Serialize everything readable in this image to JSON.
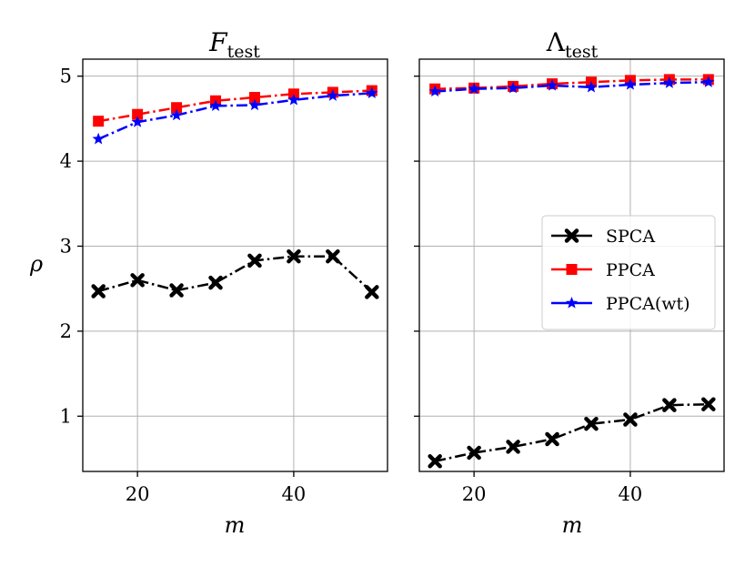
{
  "chart_data": [
    {
      "type": "line",
      "title_main": "F",
      "title_sub": "test",
      "xlabel": "m",
      "ylabel": "ρ",
      "x": [
        15,
        20,
        25,
        30,
        35,
        40,
        45,
        50
      ],
      "xlim": [
        13,
        52
      ],
      "ylim": [
        0.35,
        5.2
      ],
      "xticks": [
        20,
        40
      ],
      "yticks": [
        1,
        2,
        3,
        4,
        5
      ],
      "grid": true,
      "series": [
        {
          "name": "SPCA",
          "color": "#000000",
          "marker": "x",
          "values": [
            2.47,
            2.6,
            2.48,
            2.57,
            2.83,
            2.88,
            2.88,
            2.46
          ]
        },
        {
          "name": "PPCA",
          "color": "#ff0000",
          "marker": "square",
          "values": [
            4.47,
            4.55,
            4.63,
            4.71,
            4.75,
            4.79,
            4.81,
            4.83
          ]
        },
        {
          "name": "PPCA(wt)",
          "color": "#0000ff",
          "marker": "star",
          "values": [
            4.26,
            4.46,
            4.54,
            4.65,
            4.66,
            4.72,
            4.77,
            4.8
          ]
        }
      ]
    },
    {
      "type": "line",
      "title_main": "Λ",
      "title_sub": "test",
      "xlabel": "m",
      "ylabel": "",
      "x": [
        15,
        20,
        25,
        30,
        35,
        40,
        45,
        50
      ],
      "xlim": [
        13,
        52
      ],
      "ylim": [
        0.35,
        5.2
      ],
      "xticks": [
        20,
        40
      ],
      "yticks": [
        1,
        2,
        3,
        4,
        5
      ],
      "grid": true,
      "legend": {
        "position": "center-right",
        "entries": [
          "SPCA",
          "PPCA",
          "PPCA(wt)"
        ]
      },
      "series": [
        {
          "name": "SPCA",
          "color": "#000000",
          "marker": "x",
          "values": [
            0.47,
            0.57,
            0.64,
            0.73,
            0.91,
            0.96,
            1.13,
            1.14
          ]
        },
        {
          "name": "PPCA",
          "color": "#ff0000",
          "marker": "square",
          "values": [
            4.85,
            4.86,
            4.88,
            4.91,
            4.93,
            4.95,
            4.96,
            4.96
          ]
        },
        {
          "name": "PPCA(wt)",
          "color": "#0000ff",
          "marker": "star",
          "values": [
            4.82,
            4.85,
            4.86,
            4.89,
            4.87,
            4.9,
            4.92,
            4.93
          ]
        }
      ]
    }
  ]
}
